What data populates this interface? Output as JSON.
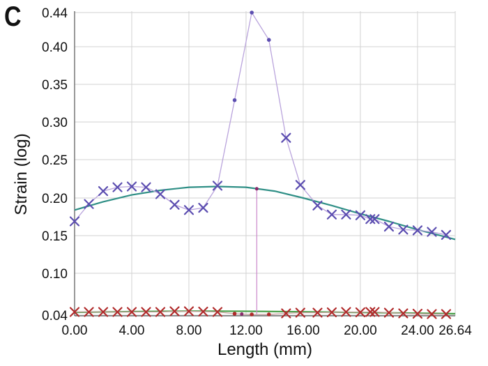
{
  "panel_label": "C",
  "chart_data": {
    "type": "line",
    "xlabel": "Length (mm)",
    "ylabel": "Strain (log)",
    "xlim": [
      0,
      26.64
    ],
    "ylim": [
      0.04,
      0.44
    ],
    "x_ticks": [
      0,
      4,
      8,
      12,
      16,
      20,
      24,
      26.64
    ],
    "x_tick_labels": [
      "0.00",
      "4.00",
      "8.00",
      "12.00",
      "16.00",
      "20.00",
      "24.00",
      "26.64"
    ],
    "y_ticks": [
      0.04,
      0.1,
      0.15,
      0.2,
      0.25,
      0.3,
      0.35,
      0.4,
      0.44
    ],
    "y_tick_labels": [
      "0.04",
      "0.10",
      "0.15",
      "0.20",
      "0.25",
      "0.30",
      "0.35",
      "0.40",
      "0.44"
    ],
    "grid": true,
    "colors": {
      "upper_series": "#5b4db0",
      "upper_line": "#b9a3dc",
      "fit_upper": "#2f8f86",
      "lower_series": "#b02a2a",
      "lower_line": "#c9a0a0",
      "fit_lower": "#4aa04a",
      "vertical_marker": "#cc88cc"
    },
    "series": [
      {
        "role": "upper-data",
        "points": [
          {
            "x": 0.0,
            "y": 0.169,
            "m": "x"
          },
          {
            "x": 1.0,
            "y": 0.192,
            "m": "x"
          },
          {
            "x": 2.0,
            "y": 0.209,
            "m": "x"
          },
          {
            "x": 3.0,
            "y": 0.214,
            "m": "x"
          },
          {
            "x": 4.0,
            "y": 0.215,
            "m": "x"
          },
          {
            "x": 5.0,
            "y": 0.214,
            "m": "x"
          },
          {
            "x": 6.0,
            "y": 0.205,
            "m": "x"
          },
          {
            "x": 7.0,
            "y": 0.191,
            "m": "x"
          },
          {
            "x": 8.0,
            "y": 0.184,
            "m": "x"
          },
          {
            "x": 9.0,
            "y": 0.187,
            "m": "x"
          },
          {
            "x": 10.0,
            "y": 0.216,
            "m": "x"
          },
          {
            "x": 11.2,
            "y": 0.329,
            "m": "dot"
          },
          {
            "x": 12.4,
            "y": 0.44,
            "m": "dot"
          },
          {
            "x": 13.6,
            "y": 0.408,
            "m": "dot"
          },
          {
            "x": 14.8,
            "y": 0.279,
            "m": "x"
          },
          {
            "x": 15.8,
            "y": 0.217,
            "m": "x"
          },
          {
            "x": 17.0,
            "y": 0.19,
            "m": "x"
          },
          {
            "x": 18.0,
            "y": 0.178,
            "m": "x"
          },
          {
            "x": 19.0,
            "y": 0.178,
            "m": "x"
          },
          {
            "x": 20.0,
            "y": 0.177,
            "m": "x"
          },
          {
            "x": 20.7,
            "y": 0.172,
            "m": "x"
          },
          {
            "x": 21.0,
            "y": 0.172,
            "m": "x"
          },
          {
            "x": 22.0,
            "y": 0.162,
            "m": "x"
          },
          {
            "x": 23.0,
            "y": 0.158,
            "m": "x"
          },
          {
            "x": 24.0,
            "y": 0.157,
            "m": "x"
          },
          {
            "x": 25.0,
            "y": 0.155,
            "m": "x"
          },
          {
            "x": 26.0,
            "y": 0.151,
            "m": "x"
          }
        ]
      },
      {
        "role": "upper-fit",
        "x": [
          0,
          2,
          4,
          6,
          8,
          10,
          12,
          14,
          16,
          18,
          20,
          22,
          24,
          26.64
        ],
        "y": [
          0.184,
          0.195,
          0.204,
          0.21,
          0.214,
          0.215,
          0.214,
          0.209,
          0.2,
          0.19,
          0.179,
          0.169,
          0.158,
          0.145
        ]
      },
      {
        "role": "lower-data",
        "points": [
          {
            "x": 0.0,
            "y": 0.0445,
            "m": "x"
          },
          {
            "x": 1.0,
            "y": 0.0445,
            "m": "x"
          },
          {
            "x": 2.0,
            "y": 0.0445,
            "m": "x"
          },
          {
            "x": 3.0,
            "y": 0.0445,
            "m": "x"
          },
          {
            "x": 4.0,
            "y": 0.0445,
            "m": "x"
          },
          {
            "x": 5.0,
            "y": 0.0445,
            "m": "x"
          },
          {
            "x": 6.0,
            "y": 0.0445,
            "m": "x"
          },
          {
            "x": 7.0,
            "y": 0.0455,
            "m": "x"
          },
          {
            "x": 8.0,
            "y": 0.0455,
            "m": "x"
          },
          {
            "x": 9.0,
            "y": 0.045,
            "m": "x"
          },
          {
            "x": 10.0,
            "y": 0.0445,
            "m": "x"
          },
          {
            "x": 11.2,
            "y": 0.042,
            "m": "dot"
          },
          {
            "x": 12.4,
            "y": 0.041,
            "m": "dot"
          },
          {
            "x": 13.6,
            "y": 0.041,
            "m": "dot"
          },
          {
            "x": 14.8,
            "y": 0.0425,
            "m": "x"
          },
          {
            "x": 15.8,
            "y": 0.0435,
            "m": "x"
          },
          {
            "x": 17.0,
            "y": 0.0435,
            "m": "x"
          },
          {
            "x": 18.0,
            "y": 0.044,
            "m": "x"
          },
          {
            "x": 19.0,
            "y": 0.0445,
            "m": "x"
          },
          {
            "x": 20.0,
            "y": 0.044,
            "m": "x"
          },
          {
            "x": 20.7,
            "y": 0.0445,
            "m": "x"
          },
          {
            "x": 21.0,
            "y": 0.0445,
            "m": "x"
          },
          {
            "x": 22.0,
            "y": 0.0435,
            "m": "x"
          },
          {
            "x": 23.0,
            "y": 0.0425,
            "m": "x"
          },
          {
            "x": 24.0,
            "y": 0.042,
            "m": "x"
          },
          {
            "x": 25.0,
            "y": 0.0415,
            "m": "x"
          },
          {
            "x": 26.0,
            "y": 0.0415,
            "m": "x"
          }
        ]
      },
      {
        "role": "lower-fit",
        "x": [
          0,
          4,
          8,
          12,
          16,
          20,
          24,
          26.64
        ],
        "y": [
          0.044,
          0.045,
          0.0458,
          0.0455,
          0.0448,
          0.0438,
          0.0428,
          0.042
        ]
      }
    ],
    "vertical_markers": [
      {
        "x": 11.7,
        "y_from": 0.04,
        "y_to": 0.0415
      },
      {
        "x": 12.75,
        "y_from": 0.0415,
        "y_to": 0.212
      }
    ]
  }
}
